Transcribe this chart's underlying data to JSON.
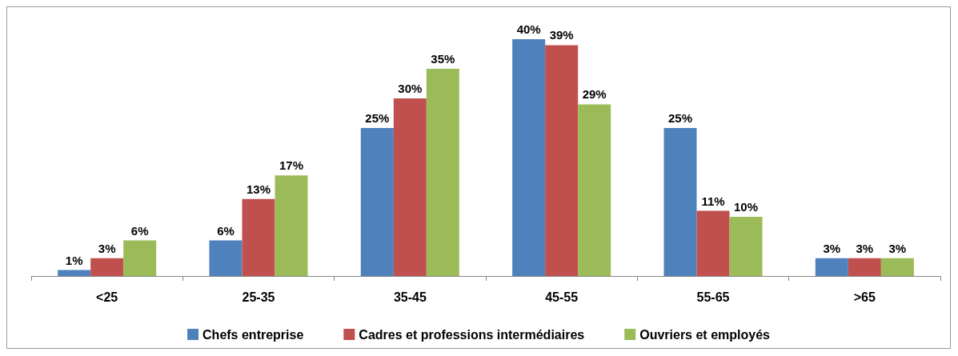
{
  "chart_data": {
    "type": "bar",
    "categories": [
      "<25",
      "25-35",
      "35-45",
      "45-55",
      "55-65",
      ">65"
    ],
    "series": [
      {
        "name": "Chefs entreprise",
        "color": "#4f81bd",
        "values": [
          1,
          6,
          25,
          40,
          25,
          3
        ],
        "value_labels": [
          "1%",
          "6%",
          "25%",
          "40%",
          "25%",
          "3%"
        ]
      },
      {
        "name": "Cadres et professions intermédiaires",
        "color": "#c0504d",
        "values": [
          3,
          13,
          30,
          39,
          11,
          3
        ],
        "value_labels": [
          "3%",
          "13%",
          "30%",
          "39%",
          "11%",
          "3%"
        ]
      },
      {
        "name": "Ouvriers et employés",
        "color": "#9bbb59",
        "values": [
          6,
          17,
          35,
          29,
          10,
          3
        ],
        "value_labels": [
          "6%",
          "17%",
          "35%",
          "29%",
          "10%",
          "3%"
        ]
      }
    ],
    "legend": "bottom"
  }
}
